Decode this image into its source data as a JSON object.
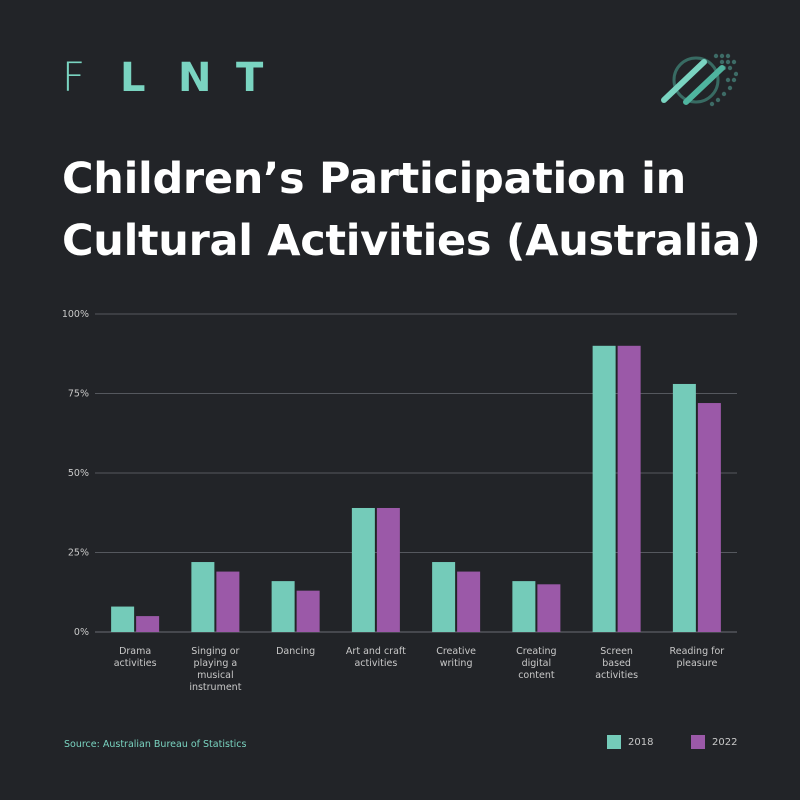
{
  "brand": {
    "letters": [
      "F",
      "L",
      "N",
      "T"
    ]
  },
  "header": {
    "title_line1": "Children’s Participation in",
    "title_line2": "Cultural Activities (Australia)"
  },
  "source": "Source: Australian Bureau of Statistics",
  "colors": {
    "background": "#222428",
    "series_2018": "#74cbb9",
    "series_2022": "#9b59a8",
    "accent": "#7ad4c1",
    "grid": "#55585e",
    "label": "#c9c9c9"
  },
  "legend": [
    {
      "label": "2018",
      "color": "#74cbb9"
    },
    {
      "label": "2022",
      "color": "#9b59a8"
    }
  ],
  "chart_data": {
    "type": "bar",
    "title": "Children’s Participation in Cultural Activities (Australia)",
    "categories": [
      [
        "Drama",
        "activities"
      ],
      [
        "Singing or",
        "playing a",
        "musical",
        "instrument"
      ],
      [
        "Dancing"
      ],
      [
        "Art and craft",
        "activities"
      ],
      [
        "Creative",
        "writing"
      ],
      [
        "Creating",
        "digital",
        "content"
      ],
      [
        "Screen",
        "based",
        "activities"
      ],
      [
        "Reading for",
        "pleasure"
      ]
    ],
    "series": [
      {
        "name": "2018",
        "color": "#74cbb9",
        "values": [
          8,
          22,
          16,
          39,
          22,
          16,
          90,
          78
        ]
      },
      {
        "name": "2022",
        "color": "#9b59a8",
        "values": [
          5,
          19,
          13,
          39,
          19,
          15,
          90,
          72
        ]
      }
    ],
    "yticks": [
      "0%",
      "25%",
      "50%",
      "75%",
      "100%"
    ],
    "ytick_values": [
      0,
      25,
      50,
      75,
      100
    ],
    "ylim": [
      0,
      100
    ],
    "grid": true,
    "legend_position": "bottom-right"
  }
}
